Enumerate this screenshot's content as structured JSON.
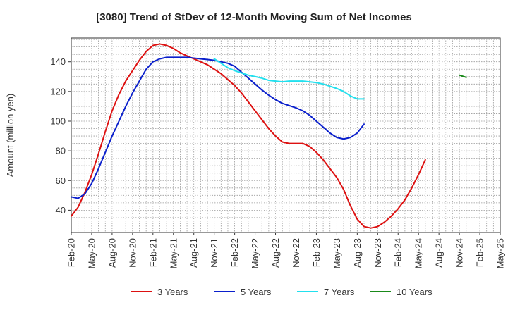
{
  "chart_data": {
    "type": "line",
    "title": "[3080]  Trend of StDev of 12-Month Moving Sum of Net Incomes",
    "ylabel": "Amount (million yen)",
    "xlabel": "",
    "x_ticks": [
      "Feb-20",
      "May-20",
      "Aug-20",
      "Nov-20",
      "Feb-21",
      "May-21",
      "Aug-21",
      "Nov-21",
      "Feb-22",
      "May-22",
      "Aug-22",
      "Nov-22",
      "Feb-23",
      "May-23",
      "Aug-23",
      "Nov-23",
      "Feb-24",
      "May-24",
      "Aug-24",
      "Nov-24",
      "Feb-25",
      "May-25"
    ],
    "y_ticks": [
      40,
      60,
      80,
      100,
      120,
      140
    ],
    "ylim": [
      25,
      156
    ],
    "grid": true,
    "legend_position": "bottom",
    "series": [
      {
        "name": "3 Years",
        "color": "#dd1111",
        "start": "Feb-20",
        "values": [
          36,
          42,
          52,
          64,
          78,
          93,
          107,
          118,
          127,
          134,
          141,
          147,
          151,
          152,
          151,
          149,
          146,
          144,
          142,
          140,
          138,
          135,
          132,
          128,
          124,
          119,
          113,
          107,
          101,
          95,
          90,
          86,
          85,
          85,
          85,
          83,
          79,
          74,
          68,
          62,
          54,
          43,
          34,
          29,
          28,
          29,
          32,
          36,
          41,
          47,
          55,
          64,
          74
        ]
      },
      {
        "name": "5 Years",
        "color": "#0a1fcc",
        "start": "Feb-20",
        "values": [
          49,
          48,
          51,
          58,
          68,
          79,
          90,
          100,
          110,
          119,
          127,
          135,
          140,
          142,
          143,
          143,
          143,
          143,
          142.5,
          142,
          141.5,
          141,
          140,
          139,
          137,
          133,
          129,
          125,
          121,
          117.5,
          114.5,
          112,
          110.5,
          109,
          107,
          104,
          100,
          96,
          92,
          89,
          88,
          89,
          92,
          98
        ]
      },
      {
        "name": "7 Years",
        "color": "#22e0ee",
        "start": "Nov-21",
        "values": [
          142,
          139,
          136,
          134,
          132.5,
          131,
          130,
          129,
          127.5,
          127,
          126.5,
          127,
          127,
          127,
          126.5,
          126,
          125,
          123.5,
          122,
          120,
          117,
          115,
          115
        ]
      },
      {
        "name": "10 Years",
        "color": "#1a8a1a",
        "start": "Nov-24",
        "values": [
          131,
          129.5
        ]
      }
    ]
  }
}
